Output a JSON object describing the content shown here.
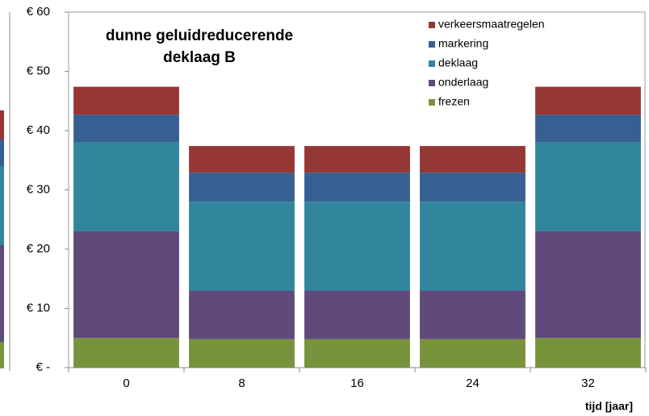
{
  "chart_data": {
    "type": "stacked_bar",
    "title": [
      "dunne geluidreducerende",
      "deklaag B"
    ],
    "x_label": "tijd [jaar]",
    "categories": [
      "0",
      "8",
      "16",
      "24",
      "32"
    ],
    "series": [
      {
        "name": "frezen",
        "color": "#77933c",
        "values": [
          5,
          4.8,
          4.8,
          4.8,
          5
        ]
      },
      {
        "name": "onderlaag",
        "color": "#604a7b",
        "values": [
          18,
          8.2,
          8.2,
          8.2,
          18
        ]
      },
      {
        "name": "deklaag",
        "color": "#31859c",
        "values": [
          15,
          15,
          15,
          15,
          15
        ]
      },
      {
        "name": "markering",
        "color": "#376092",
        "values": [
          4.7,
          4.9,
          4.9,
          4.9,
          4.7
        ]
      },
      {
        "name": "verkeersmaatregelen",
        "color": "#953735",
        "values": [
          4.7,
          4.5,
          4.5,
          4.5,
          4.7
        ]
      }
    ],
    "ylim": [
      0,
      60
    ],
    "yticks": [
      {
        "value": 0,
        "label": "€ -"
      },
      {
        "value": 10,
        "label": "€ 10"
      },
      {
        "value": 20,
        "label": "€ 20"
      },
      {
        "value": 30,
        "label": "€ 30"
      },
      {
        "value": 40,
        "label": "€ 40"
      },
      {
        "value": 50,
        "label": "€ 50"
      },
      {
        "value": 60,
        "label": "€ 60"
      }
    ],
    "legend": "top-right"
  }
}
